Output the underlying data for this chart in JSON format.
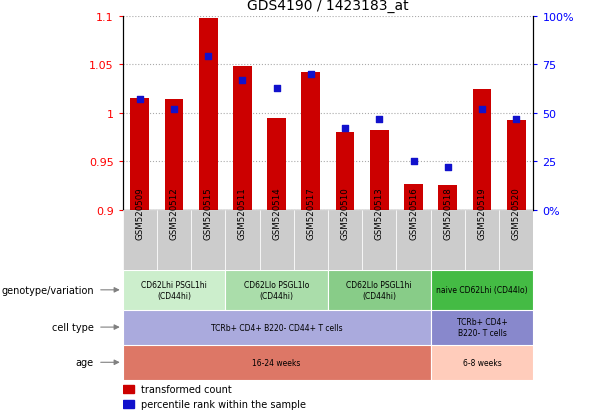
{
  "title": "GDS4190 / 1423183_at",
  "samples": [
    "GSM520509",
    "GSM520512",
    "GSM520515",
    "GSM520511",
    "GSM520514",
    "GSM520517",
    "GSM520510",
    "GSM520513",
    "GSM520516",
    "GSM520518",
    "GSM520519",
    "GSM520520"
  ],
  "transformed_count": [
    1.015,
    1.014,
    1.098,
    1.048,
    0.995,
    1.042,
    0.98,
    0.982,
    0.927,
    0.926,
    1.025,
    0.993
  ],
  "percentile_rank": [
    57,
    52,
    79,
    67,
    63,
    70,
    42,
    47,
    25,
    22,
    52,
    47
  ],
  "bar_base": 0.9,
  "ylim_left": [
    0.9,
    1.1
  ],
  "ylim_right": [
    0,
    100
  ],
  "yticks_left": [
    0.9,
    0.95,
    1.0,
    1.05,
    1.1
  ],
  "yticks_right": [
    0,
    25,
    50,
    75,
    100
  ],
  "ytick_left_labels": [
    "0.9",
    "0.95",
    "1",
    "1.05",
    "1.1"
  ],
  "ytick_right_labels": [
    "0%",
    "25",
    "50",
    "75",
    "100%"
  ],
  "bar_color": "#cc0000",
  "dot_color": "#1111cc",
  "grid_linestyle": ":",
  "grid_color": "#aaaaaa",
  "bg_color": "#ffffff",
  "genotype_groups": [
    {
      "label": "CD62Lhi PSGL1hi\n(CD44hi)",
      "start": 0,
      "end": 3,
      "color": "#cceecc"
    },
    {
      "label": "CD62Llo PSGL1lo\n(CD44hi)",
      "start": 3,
      "end": 6,
      "color": "#aaddaa"
    },
    {
      "label": "CD62Llo PSGL1hi\n(CD44hi)",
      "start": 6,
      "end": 9,
      "color": "#88cc88"
    },
    {
      "label": "naive CD62Lhi (CD44lo)",
      "start": 9,
      "end": 12,
      "color": "#44bb44"
    }
  ],
  "cell_type_groups": [
    {
      "label": "TCRb+ CD4+ B220- CD44+ T cells",
      "start": 0,
      "end": 9,
      "color": "#aaaadd"
    },
    {
      "label": "TCRb+ CD4+\nB220- T cells",
      "start": 9,
      "end": 12,
      "color": "#8888cc"
    }
  ],
  "age_groups": [
    {
      "label": "16-24 weeks",
      "start": 0,
      "end": 9,
      "color": "#dd7766"
    },
    {
      "label": "6-8 weeks",
      "start": 9,
      "end": 12,
      "color": "#ffccbb"
    }
  ],
  "row_labels": [
    "genotype/variation",
    "cell type",
    "age"
  ],
  "legend_items": [
    {
      "color": "#cc0000",
      "label": "transformed count"
    },
    {
      "color": "#1111cc",
      "label": "percentile rank within the sample"
    }
  ],
  "xtick_bg": "#cccccc",
  "table_border": "#ffffff"
}
